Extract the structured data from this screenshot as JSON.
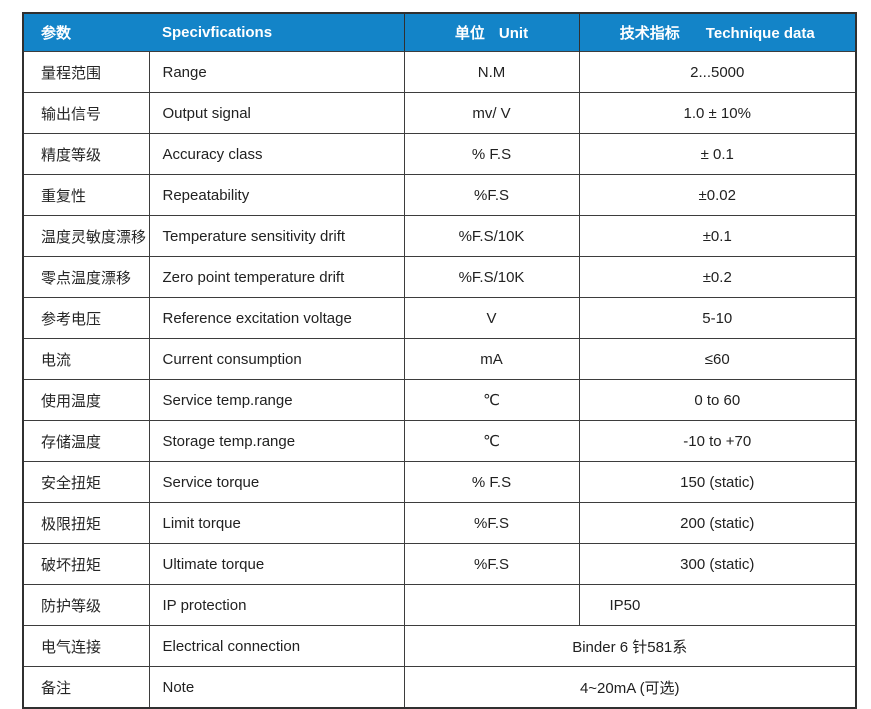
{
  "colors": {
    "header_bg": "#1384c8",
    "header_text": "#ffffff",
    "border": "#3d3d3d",
    "text": "#212121"
  },
  "header": {
    "param_zh": "参数",
    "spec_en": "Specivfications",
    "unit_zh": "单位",
    "unit_en": "Unit",
    "tech_zh": "技术指标",
    "tech_en": "Technique data"
  },
  "rows": [
    {
      "zh": "量程范围",
      "en": "Range",
      "unit": "N.M",
      "value": "2...5000"
    },
    {
      "zh": "输出信号",
      "en": "Output signal",
      "unit": "mv/ V",
      "value": "1.0 ± 10%"
    },
    {
      "zh": "精度等级",
      "en": "Accuracy class",
      "unit": "% F.S",
      "value": "± 0.1"
    },
    {
      "zh": "重复性",
      "en": "Repeatability",
      "unit": "%F.S",
      "value": "±0.02"
    },
    {
      "zh": "温度灵敏度漂移",
      "en": "Temperature sensitivity drift",
      "unit": "%F.S/10K",
      "value": "±0.1"
    },
    {
      "zh": "零点温度漂移",
      "en": "Zero point temperature drift",
      "unit": "%F.S/10K",
      "value": "±0.2"
    },
    {
      "zh": "参考电压",
      "en": "Reference excitation voltage",
      "unit": "V",
      "value": "5-10"
    },
    {
      "zh": "电流",
      "en": "Current consumption",
      "unit": "mA",
      "value": "≤60"
    },
    {
      "zh": "使用温度",
      "en": "Service temp.range",
      "unit": "℃",
      "value": "0 to 60"
    },
    {
      "zh": "存储温度",
      "en": "Storage temp.range",
      "unit": "℃",
      "value": "-10 to +70"
    },
    {
      "zh": "安全扭矩",
      "en": "Service torque",
      "unit": "% F.S",
      "value": "150 (static)"
    },
    {
      "zh": "极限扭矩",
      "en": "Limit torque",
      "unit": "%F.S",
      "value": "200 (static)"
    },
    {
      "zh": "破坏扭矩",
      "en": "Ultimate torque",
      "unit": "%F.S",
      "value": "300 (static)"
    },
    {
      "zh": "防护等级",
      "en": "IP protection",
      "unit": "",
      "value": "IP50"
    },
    {
      "zh": "电气连接",
      "en": "Electrical connection",
      "merged_value": "Binder 6 针581系"
    },
    {
      "zh": "备注",
      "en": "Note",
      "merged_value": "4~20mA (可选)"
    }
  ]
}
